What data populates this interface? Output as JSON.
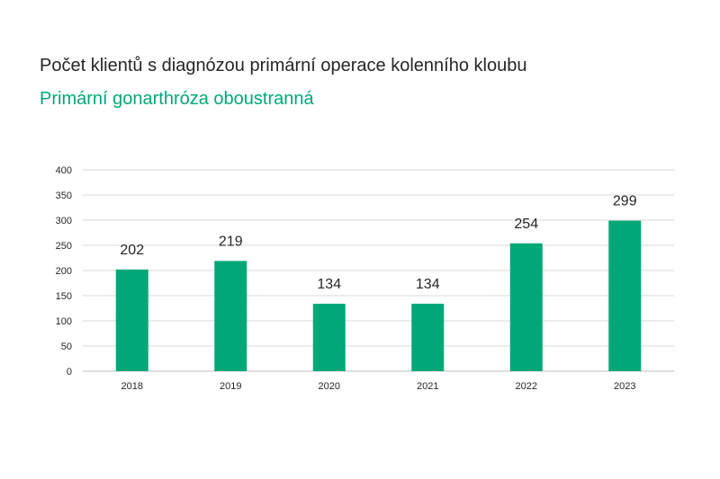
{
  "chart_data": {
    "type": "bar",
    "title": "Počet klientů s diagnózou primární operace kolenního kloubu",
    "subtitle": "Primární gonarthróza oboustranná",
    "categories": [
      "2018",
      "2019",
      "2020",
      "2021",
      "2022",
      "2023"
    ],
    "values": [
      202,
      219,
      134,
      134,
      254,
      299
    ],
    "data_labels": [
      "202",
      "219",
      "134",
      "134",
      "254",
      "299"
    ],
    "yticks": [
      "0",
      "50",
      "100",
      "150",
      "200",
      "250",
      "300",
      "350",
      "400"
    ],
    "ylim": [
      0,
      400
    ],
    "grid": true,
    "legend": "none",
    "colors": {
      "bar": "#00A878",
      "subtitle": "#00A878",
      "grid": "#D9D9D9",
      "axis": "#BFBFBF"
    }
  }
}
